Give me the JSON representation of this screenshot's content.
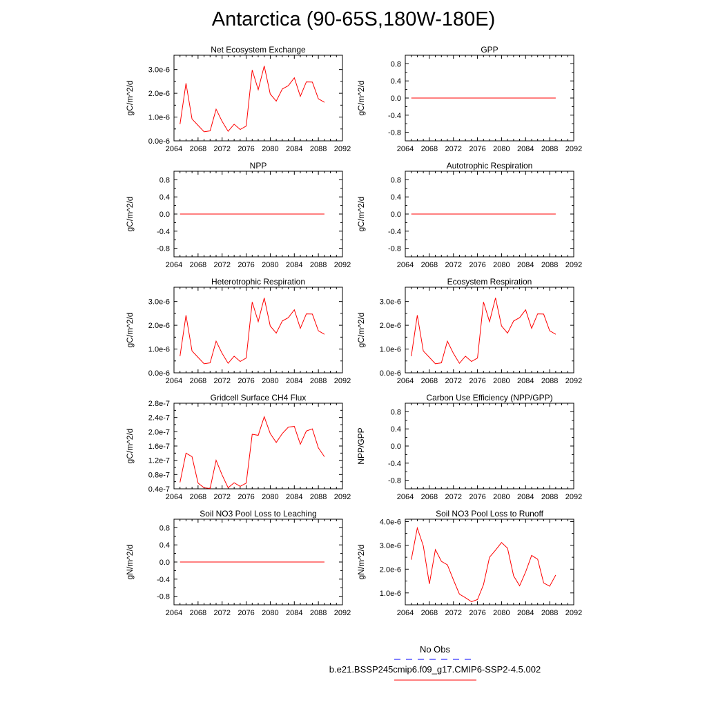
{
  "figure": {
    "title": "Antarctica (90-65S,180W-180E)"
  },
  "legend": {
    "entries": [
      {
        "label": "No Obs",
        "color": "#0000ff",
        "dash": "dashed"
      },
      {
        "label": "b.e21.BSSP245cmip6.f09_g17.CMIP6-SSP2-4.5.002",
        "color": "#ff0000",
        "dash": "solid"
      }
    ]
  },
  "chart_data": [
    {
      "type": "line",
      "title": "Net Ecosystem Exchange",
      "ylabel": "gC/m^2/d",
      "xlim": [
        2064,
        2092
      ],
      "xticks": [
        "2064",
        "2068",
        "2072",
        "2076",
        "2080",
        "2084",
        "2088",
        "2092"
      ],
      "ylim": [
        0,
        3.6e-06
      ],
      "yticks": [
        {
          "v": 0,
          "label": "0.0e-6"
        },
        {
          "v": 1e-06,
          "label": "1.0e-6"
        },
        {
          "v": 2e-06,
          "label": "2.0e-6"
        },
        {
          "v": 3e-06,
          "label": "3.0e-6"
        }
      ],
      "series": [
        {
          "color": "#ff0000",
          "x": [
            2065,
            2066,
            2067,
            2068,
            2069,
            2070,
            2071,
            2072,
            2073,
            2074,
            2075,
            2076,
            2077,
            2078,
            2079,
            2080,
            2081,
            2082,
            2083,
            2084,
            2085,
            2086,
            2087,
            2088,
            2089
          ],
          "y": [
            7e-07,
            2.42e-06,
            9.2e-07,
            6.5e-07,
            3.8e-07,
            4.2e-07,
            1.33e-06,
            8.2e-07,
            4e-07,
            7e-07,
            4.8e-07,
            6.2e-07,
            2.98e-06,
            2.15e-06,
            3.15e-06,
            1.97e-06,
            1.67e-06,
            2.18e-06,
            2.32e-06,
            2.65e-06,
            1.87e-06,
            2.48e-06,
            2.47e-06,
            1.77e-06,
            1.62e-06
          ]
        }
      ]
    },
    {
      "type": "line",
      "title": "GPP",
      "ylabel": "gC/m^2/d",
      "xlim": [
        2064,
        2092
      ],
      "xticks": [
        "2064",
        "2068",
        "2072",
        "2076",
        "2080",
        "2084",
        "2088",
        "2092"
      ],
      "ylim": [
        -1,
        1
      ],
      "yticks": [
        {
          "v": -0.8,
          "label": "-0.8"
        },
        {
          "v": -0.4,
          "label": "-0.4"
        },
        {
          "v": 0,
          "label": "0.0"
        },
        {
          "v": 0.4,
          "label": "0.4"
        },
        {
          "v": 0.8,
          "label": "0.8"
        }
      ],
      "series": [
        {
          "color": "#ff0000",
          "x": [
            2065,
            2089
          ],
          "y": [
            0,
            0
          ]
        }
      ]
    },
    {
      "type": "line",
      "title": "NPP",
      "ylabel": "gC/m^2/d",
      "xlim": [
        2064,
        2092
      ],
      "xticks": [
        "2064",
        "2068",
        "2072",
        "2076",
        "2080",
        "2084",
        "2088",
        "2092"
      ],
      "ylim": [
        -1,
        1
      ],
      "yticks": [
        {
          "v": -0.8,
          "label": "-0.8"
        },
        {
          "v": -0.4,
          "label": "-0.4"
        },
        {
          "v": 0,
          "label": "0.0"
        },
        {
          "v": 0.4,
          "label": "0.4"
        },
        {
          "v": 0.8,
          "label": "0.8"
        }
      ],
      "series": [
        {
          "color": "#ff0000",
          "x": [
            2065,
            2089
          ],
          "y": [
            0,
            0
          ]
        }
      ]
    },
    {
      "type": "line",
      "title": "Autotrophic Respiration",
      "ylabel": "gC/m^2/d",
      "xlim": [
        2064,
        2092
      ],
      "xticks": [
        "2064",
        "2068",
        "2072",
        "2076",
        "2080",
        "2084",
        "2088",
        "2092"
      ],
      "ylim": [
        -1,
        1
      ],
      "yticks": [
        {
          "v": -0.8,
          "label": "-0.8"
        },
        {
          "v": -0.4,
          "label": "-0.4"
        },
        {
          "v": 0,
          "label": "0.0"
        },
        {
          "v": 0.4,
          "label": "0.4"
        },
        {
          "v": 0.8,
          "label": "0.8"
        }
      ],
      "series": [
        {
          "color": "#ff0000",
          "x": [
            2065,
            2089
          ],
          "y": [
            0,
            0
          ]
        }
      ]
    },
    {
      "type": "line",
      "title": "Heterotrophic Respiration",
      "ylabel": "gC/m^2/d",
      "xlim": [
        2064,
        2092
      ],
      "xticks": [
        "2064",
        "2068",
        "2072",
        "2076",
        "2080",
        "2084",
        "2088",
        "2092"
      ],
      "ylim": [
        0,
        3.6e-06
      ],
      "yticks": [
        {
          "v": 0,
          "label": "0.0e-6"
        },
        {
          "v": 1e-06,
          "label": "1.0e-6"
        },
        {
          "v": 2e-06,
          "label": "2.0e-6"
        },
        {
          "v": 3e-06,
          "label": "3.0e-6"
        }
      ],
      "series": [
        {
          "color": "#ff0000",
          "x": [
            2065,
            2066,
            2067,
            2068,
            2069,
            2070,
            2071,
            2072,
            2073,
            2074,
            2075,
            2076,
            2077,
            2078,
            2079,
            2080,
            2081,
            2082,
            2083,
            2084,
            2085,
            2086,
            2087,
            2088,
            2089
          ],
          "y": [
            7e-07,
            2.42e-06,
            9.2e-07,
            6.5e-07,
            3.8e-07,
            4.2e-07,
            1.33e-06,
            8.2e-07,
            4e-07,
            7e-07,
            4.8e-07,
            6.2e-07,
            2.98e-06,
            2.15e-06,
            3.15e-06,
            1.97e-06,
            1.67e-06,
            2.18e-06,
            2.32e-06,
            2.65e-06,
            1.87e-06,
            2.48e-06,
            2.47e-06,
            1.77e-06,
            1.62e-06
          ]
        }
      ]
    },
    {
      "type": "line",
      "title": "Ecosystem Respiration",
      "ylabel": "gC/m^2/d",
      "xlim": [
        2064,
        2092
      ],
      "xticks": [
        "2064",
        "2068",
        "2072",
        "2076",
        "2080",
        "2084",
        "2088",
        "2092"
      ],
      "ylim": [
        0,
        3.6e-06
      ],
      "yticks": [
        {
          "v": 0,
          "label": "0.0e-6"
        },
        {
          "v": 1e-06,
          "label": "1.0e-6"
        },
        {
          "v": 2e-06,
          "label": "2.0e-6"
        },
        {
          "v": 3e-06,
          "label": "3.0e-6"
        }
      ],
      "series": [
        {
          "color": "#ff0000",
          "x": [
            2065,
            2066,
            2067,
            2068,
            2069,
            2070,
            2071,
            2072,
            2073,
            2074,
            2075,
            2076,
            2077,
            2078,
            2079,
            2080,
            2081,
            2082,
            2083,
            2084,
            2085,
            2086,
            2087,
            2088,
            2089
          ],
          "y": [
            7e-07,
            2.42e-06,
            9.2e-07,
            6.5e-07,
            3.8e-07,
            4.2e-07,
            1.33e-06,
            8.2e-07,
            4e-07,
            7e-07,
            4.8e-07,
            6.2e-07,
            2.98e-06,
            2.15e-06,
            3.15e-06,
            1.97e-06,
            1.67e-06,
            2.18e-06,
            2.32e-06,
            2.65e-06,
            1.87e-06,
            2.48e-06,
            2.47e-06,
            1.77e-06,
            1.62e-06
          ]
        }
      ]
    },
    {
      "type": "line",
      "title": "Gridcell Surface CH4 Flux",
      "ylabel": "gC/m^2/d",
      "xlim": [
        2064,
        2092
      ],
      "xticks": [
        "2064",
        "2068",
        "2072",
        "2076",
        "2080",
        "2084",
        "2088",
        "2092"
      ],
      "ylim": [
        4e-08,
        2.8e-07
      ],
      "yticks": [
        {
          "v": 4e-08,
          "label": "0.4e-7"
        },
        {
          "v": 8e-08,
          "label": "0.8e-7"
        },
        {
          "v": 1.2e-07,
          "label": "1.2e-7"
        },
        {
          "v": 1.6e-07,
          "label": "1.6e-7"
        },
        {
          "v": 2e-07,
          "label": "2.0e-7"
        },
        {
          "v": 2.4e-07,
          "label": "2.4e-7"
        },
        {
          "v": 2.8e-07,
          "label": "2.8e-7"
        }
      ],
      "series": [
        {
          "color": "#ff0000",
          "x": [
            2065,
            2066,
            2067,
            2068,
            2069,
            2070,
            2071,
            2072,
            2073,
            2074,
            2075,
            2076,
            2077,
            2078,
            2079,
            2080,
            2081,
            2082,
            2083,
            2084,
            2085,
            2086,
            2087,
            2088,
            2089
          ],
          "y": [
            5.8e-08,
            1.4e-07,
            1.3e-07,
            5.6e-08,
            4.3e-08,
            4.1e-08,
            1.2e-07,
            7.9e-08,
            4.3e-08,
            5.7e-08,
            4.7e-08,
            5.6e-08,
            1.93e-07,
            1.9e-07,
            2.42e-07,
            1.95e-07,
            1.7e-07,
            1.95e-07,
            2.13e-07,
            2.15e-07,
            1.65e-07,
            2.02e-07,
            2.08e-07,
            1.55e-07,
            1.3e-07
          ]
        }
      ]
    },
    {
      "type": "line",
      "title": "Carbon Use Efficiency (NPP/GPP)",
      "ylabel": "NPP/GPP",
      "xlim": [
        2064,
        2092
      ],
      "xticks": [
        "2064",
        "2068",
        "2072",
        "2076",
        "2080",
        "2084",
        "2088",
        "2092"
      ],
      "ylim": [
        -1,
        1
      ],
      "yticks": [
        {
          "v": -0.8,
          "label": "-0.8"
        },
        {
          "v": -0.4,
          "label": "-0.4"
        },
        {
          "v": 0,
          "label": "0.0"
        },
        {
          "v": 0.4,
          "label": "0.4"
        },
        {
          "v": 0.8,
          "label": "0.8"
        }
      ],
      "series": []
    },
    {
      "type": "line",
      "title": "Soil NO3 Pool Loss to Leaching",
      "ylabel": "gN/m^2/d",
      "xlim": [
        2064,
        2092
      ],
      "xticks": [
        "2064",
        "2068",
        "2072",
        "2076",
        "2080",
        "2084",
        "2088",
        "2092"
      ],
      "ylim": [
        -1,
        1
      ],
      "yticks": [
        {
          "v": -0.8,
          "label": "-0.8"
        },
        {
          "v": -0.4,
          "label": "-0.4"
        },
        {
          "v": 0,
          "label": "0.0"
        },
        {
          "v": 0.4,
          "label": "0.4"
        },
        {
          "v": 0.8,
          "label": "0.8"
        }
      ],
      "series": [
        {
          "color": "#ff0000",
          "x": [
            2065,
            2089
          ],
          "y": [
            0,
            0
          ]
        }
      ]
    },
    {
      "type": "line",
      "title": "Soil NO3 Pool Loss to Runoff",
      "ylabel": "gN/m^2/d",
      "xlim": [
        2064,
        2092
      ],
      "xticks": [
        "2064",
        "2068",
        "2072",
        "2076",
        "2080",
        "2084",
        "2088",
        "2092"
      ],
      "ylim": [
        5e-07,
        4.1e-06
      ],
      "yticks": [
        {
          "v": 1e-06,
          "label": "1.0e-6"
        },
        {
          "v": 2e-06,
          "label": "2.0e-6"
        },
        {
          "v": 3e-06,
          "label": "3.0e-6"
        },
        {
          "v": 4e-06,
          "label": "4.0e-6"
        }
      ],
      "series": [
        {
          "color": "#ff0000",
          "x": [
            2065,
            2066,
            2067,
            2068,
            2069,
            2070,
            2071,
            2072,
            2073,
            2074,
            2075,
            2076,
            2077,
            2078,
            2079,
            2080,
            2081,
            2082,
            2083,
            2084,
            2085,
            2086,
            2087,
            2088,
            2089
          ],
          "y": [
            2.4e-06,
            3.73e-06,
            2.98e-06,
            1.38e-06,
            2.82e-06,
            2.33e-06,
            2.18e-06,
            1.55e-06,
            9.5e-07,
            8e-07,
            6.3e-07,
            7.2e-07,
            1.35e-06,
            2.5e-06,
            2.8e-06,
            3.12e-06,
            2.88e-06,
            1.72e-06,
            1.3e-06,
            1.88e-06,
            2.58e-06,
            2.42e-06,
            1.42e-06,
            1.28e-06,
            1.75e-06
          ]
        }
      ]
    }
  ]
}
